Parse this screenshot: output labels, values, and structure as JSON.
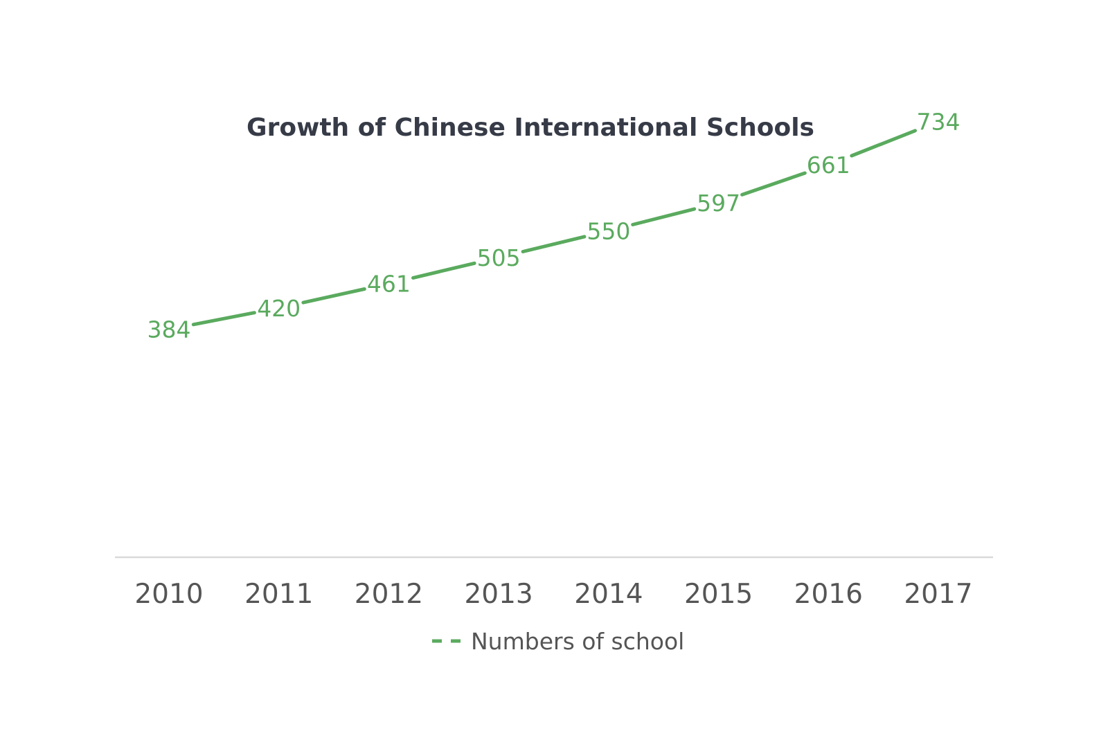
{
  "chart_data": {
    "type": "line",
    "title": "Growth of Chinese International Schools",
    "categories": [
      "2010",
      "2011",
      "2012",
      "2013",
      "2014",
      "2015",
      "2016",
      "2017"
    ],
    "series": [
      {
        "name": "Numbers of school",
        "values": [
          384,
          420,
          461,
          505,
          550,
          597,
          661,
          734
        ],
        "color": "#5aaa5e"
      }
    ],
    "xlabel": "",
    "ylabel": "",
    "ylim": [
      0,
      1000
    ],
    "grid": false,
    "legend": "bottom"
  },
  "colors": {
    "series": "#5aaa5e",
    "axis": "#d9d9d9",
    "title": "#363b47",
    "ticks": "#555555"
  }
}
